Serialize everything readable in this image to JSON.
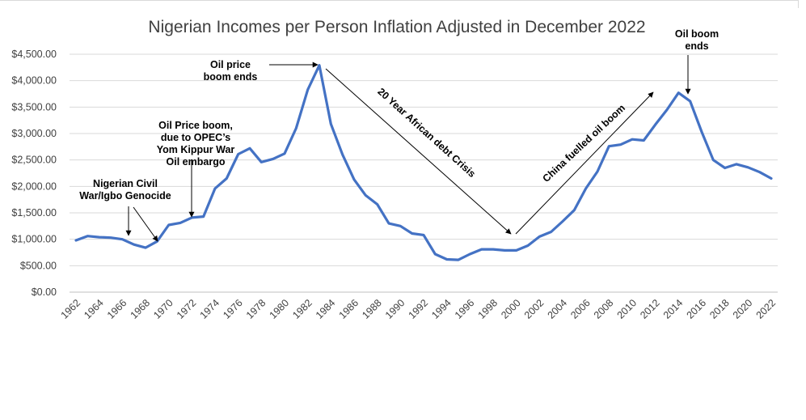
{
  "chart_data": {
    "type": "line",
    "title": "Nigerian Incomes per Person Inflation Adjusted in December 2022",
    "xlabel": "",
    "ylabel": "",
    "ylim": [
      0,
      4500
    ],
    "y_ticks": [
      "$0.00",
      "$500.00",
      "$1,000.00",
      "$1,500.00",
      "$2,000.00",
      "$2,500.00",
      "$3,000.00",
      "$3,500.00",
      "$4,000.00",
      "$4,500.00"
    ],
    "x_ticks": [
      "1962",
      "1964",
      "1966",
      "1968",
      "1970",
      "1972",
      "1974",
      "1976",
      "1978",
      "1980",
      "1982",
      "1984",
      "1986",
      "1988",
      "1990",
      "1992",
      "1994",
      "1996",
      "1998",
      "2000",
      "2002",
      "2004",
      "2006",
      "2008",
      "2010",
      "2012",
      "2014",
      "2016",
      "2018",
      "2020",
      "2022"
    ],
    "grid": true,
    "line_color": "#4472c4",
    "x": [
      1962,
      1963,
      1964,
      1965,
      1966,
      1967,
      1968,
      1969,
      1970,
      1971,
      1972,
      1973,
      1974,
      1975,
      1976,
      1977,
      1978,
      1979,
      1980,
      1981,
      1982,
      1983,
      1984,
      1985,
      1986,
      1987,
      1988,
      1989,
      1990,
      1991,
      1992,
      1993,
      1994,
      1995,
      1996,
      1997,
      1998,
      1999,
      2000,
      2001,
      2002,
      2003,
      2004,
      2005,
      2006,
      2007,
      2008,
      2009,
      2010,
      2011,
      2012,
      2013,
      2014,
      2015,
      2016,
      2017,
      2018,
      2019,
      2020,
      2021,
      2022
    ],
    "values": [
      980,
      1060,
      1040,
      1030,
      1000,
      900,
      840,
      960,
      1270,
      1310,
      1410,
      1430,
      1960,
      2150,
      2610,
      2720,
      2460,
      2520,
      2620,
      3100,
      3830,
      4290,
      3180,
      2600,
      2130,
      1830,
      1660,
      1300,
      1250,
      1110,
      1080,
      720,
      620,
      610,
      720,
      810,
      810,
      790,
      790,
      880,
      1050,
      1140,
      1340,
      1550,
      1960,
      2280,
      2760,
      2790,
      2890,
      2870,
      3170,
      3450,
      3770,
      3610,
      3030,
      2500,
      2350,
      2420,
      2360,
      2270,
      2150
    ],
    "annotations": [
      {
        "id": "civil_war",
        "lines": [
          "Nigerian Civil",
          "War/Igbo Genocide"
        ]
      },
      {
        "id": "opec",
        "lines": [
          "Oil Price boom,",
          "due to OPEC’s",
          "Yom Kippur War",
          "Oil embargo"
        ]
      },
      {
        "id": "oil_price_ends",
        "lines": [
          "Oil price",
          "boom ends"
        ]
      },
      {
        "id": "debt_crisis",
        "lines": [
          "20 Year African debt Crisis"
        ]
      },
      {
        "id": "china",
        "lines": [
          "China fuelled oil boom"
        ]
      },
      {
        "id": "oil_boom_ends",
        "lines": [
          "Oil boom",
          "ends"
        ]
      }
    ]
  }
}
